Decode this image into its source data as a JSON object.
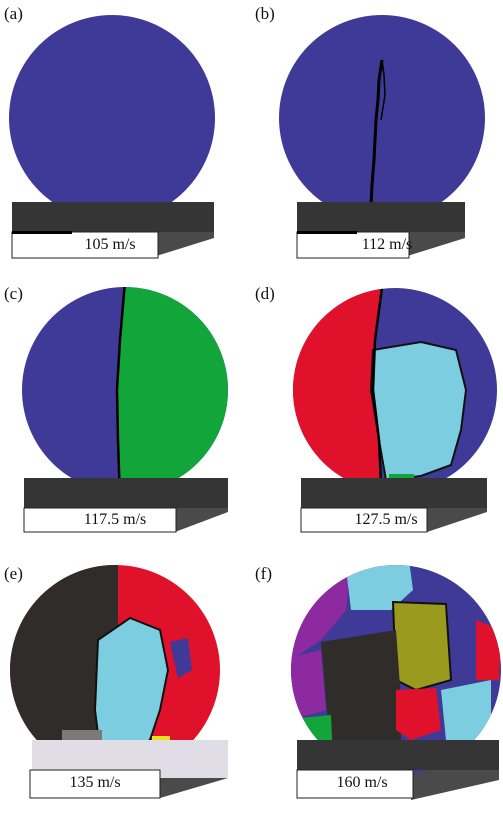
{
  "panels": [
    {
      "label": "(a)",
      "velocity": "105 m/s"
    },
    {
      "label": "(b)",
      "velocity": "112 m/s"
    },
    {
      "label": "(c)",
      "velocity": "117.5 m/s"
    },
    {
      "label": "(d)",
      "velocity": "127.5 m/s"
    },
    {
      "label": "(e)",
      "velocity": "135 m/s"
    },
    {
      "label": "(f)",
      "velocity": "160 m/s"
    }
  ],
  "colors": {
    "blue": "#3f3a98",
    "green": "#12a63a",
    "red": "#e0112a",
    "lightblue": "#7dcde0",
    "dark": "#2f2c2a",
    "olive": "#9a9a1e",
    "purple": "#8e2aa0",
    "yellow": "#e8e21a",
    "gray": "#7a7a7a",
    "plate_top": "#353535",
    "plate_side": "#4a4a4a"
  }
}
